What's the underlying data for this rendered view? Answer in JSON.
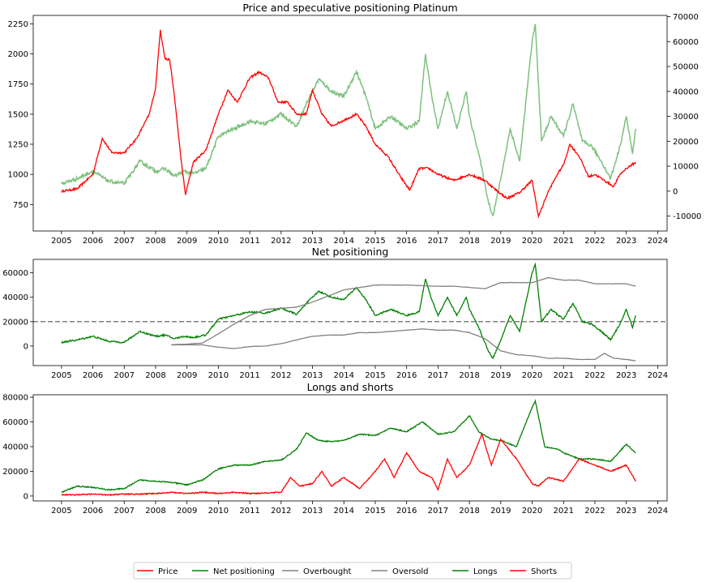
{
  "chart_data": [
    {
      "type": "line",
      "title": "Price and speculative positioning Platinum",
      "xlim": [
        2004.1,
        2024.3
      ],
      "ylim": [
        530,
        2320
      ],
      "y2lim": [
        -16000,
        70500
      ],
      "x_ticks": [
        2005,
        2006,
        2007,
        2008,
        2009,
        2010,
        2011,
        2012,
        2013,
        2014,
        2015,
        2016,
        2017,
        2018,
        2019,
        2020,
        2021,
        2022,
        2023,
        2024
      ],
      "y_ticks": [
        750,
        1000,
        1250,
        1500,
        1750,
        2000,
        2250
      ],
      "y2_ticks": [
        -10000,
        0,
        10000,
        20000,
        30000,
        40000,
        50000,
        60000,
        70000
      ],
      "grid": false,
      "series": [
        {
          "name": "Price",
          "axis": "left",
          "color": "#ff0000",
          "x": [
            2005.0,
            2005.5,
            2006.0,
            2006.3,
            2006.6,
            2007.0,
            2007.4,
            2007.8,
            2008.0,
            2008.15,
            2008.3,
            2008.45,
            2008.6,
            2008.8,
            2008.95,
            2009.2,
            2009.6,
            2010.0,
            2010.3,
            2010.6,
            2011.0,
            2011.3,
            2011.6,
            2011.9,
            2012.2,
            2012.5,
            2012.8,
            2013.0,
            2013.3,
            2013.6,
            2014.0,
            2014.4,
            2014.7,
            2015.0,
            2015.4,
            2015.8,
            2016.1,
            2016.4,
            2016.7,
            2017.0,
            2017.5,
            2018.0,
            2018.5,
            2018.8,
            2019.2,
            2019.6,
            2020.0,
            2020.2,
            2020.5,
            2020.8,
            2021.0,
            2021.2,
            2021.5,
            2021.8,
            2022.0,
            2022.3,
            2022.6,
            2022.8,
            2023.0,
            2023.3
          ],
          "y": [
            860,
            880,
            1000,
            1300,
            1180,
            1180,
            1300,
            1500,
            1720,
            2200,
            1960,
            1950,
            1650,
            1150,
            830,
            1100,
            1200,
            1500,
            1700,
            1600,
            1800,
            1850,
            1800,
            1600,
            1600,
            1500,
            1500,
            1700,
            1500,
            1400,
            1450,
            1500,
            1400,
            1250,
            1150,
            980,
            870,
            1050,
            1050,
            1000,
            950,
            1000,
            950,
            880,
            800,
            850,
            950,
            650,
            850,
            1000,
            1080,
            1250,
            1150,
            980,
            1000,
            950,
            900,
            1000,
            1050,
            1100
          ]
        },
        {
          "name": "Net positioning",
          "axis": "right",
          "color": "#7dc07d",
          "x": [
            2005.0,
            2005.5,
            2006.0,
            2006.5,
            2007.0,
            2007.5,
            2008.0,
            2008.3,
            2008.6,
            2008.9,
            2009.2,
            2009.6,
            2010.0,
            2010.5,
            2011.0,
            2011.5,
            2012.0,
            2012.5,
            2012.8,
            2013.2,
            2013.6,
            2014.0,
            2014.4,
            2014.7,
            2015.0,
            2015.5,
            2016.0,
            2016.4,
            2016.6,
            2016.8,
            2017.0,
            2017.3,
            2017.6,
            2017.9,
            2018.0,
            2018.3,
            2018.6,
            2018.75,
            2019.0,
            2019.3,
            2019.6,
            2020.0,
            2020.1,
            2020.3,
            2020.6,
            2021.0,
            2021.3,
            2021.6,
            2021.9,
            2022.2,
            2022.5,
            2022.8,
            2023.0,
            2023.2,
            2023.3
          ],
          "y": [
            3000,
            5000,
            8000,
            4000,
            3000,
            12000,
            8000,
            9000,
            6000,
            8000,
            7000,
            9000,
            22000,
            25000,
            28000,
            27000,
            31000,
            26000,
            35000,
            45000,
            40000,
            38000,
            48000,
            38000,
            25000,
            30000,
            25000,
            28000,
            55000,
            38000,
            25000,
            40000,
            25000,
            40000,
            30000,
            15000,
            -4000,
            -10000,
            5000,
            25000,
            12000,
            60000,
            67000,
            20000,
            30000,
            22000,
            35000,
            20000,
            18000,
            12000,
            5000,
            18000,
            30000,
            15000,
            25000
          ]
        }
      ]
    },
    {
      "type": "line",
      "title": "Net positioning",
      "xlim": [
        2004.1,
        2024.3
      ],
      "ylim": [
        -16000,
        71000
      ],
      "x_ticks": [
        2005,
        2006,
        2007,
        2008,
        2009,
        2010,
        2011,
        2012,
        2013,
        2014,
        2015,
        2016,
        2017,
        2018,
        2019,
        2020,
        2021,
        2022,
        2023,
        2024
      ],
      "y_ticks": [
        0,
        20000,
        40000,
        60000
      ],
      "grid": false,
      "threshold_line": 20000,
      "series": [
        {
          "name": "Net positioning",
          "color": "#008000",
          "x": [
            2005.0,
            2005.5,
            2006.0,
            2006.5,
            2007.0,
            2007.5,
            2008.0,
            2008.3,
            2008.6,
            2008.9,
            2009.2,
            2009.6,
            2010.0,
            2010.5,
            2011.0,
            2011.5,
            2012.0,
            2012.5,
            2012.8,
            2013.2,
            2013.6,
            2014.0,
            2014.4,
            2014.7,
            2015.0,
            2015.5,
            2016.0,
            2016.4,
            2016.6,
            2016.8,
            2017.0,
            2017.3,
            2017.6,
            2017.9,
            2018.0,
            2018.3,
            2018.6,
            2018.75,
            2019.0,
            2019.3,
            2019.6,
            2020.0,
            2020.1,
            2020.3,
            2020.6,
            2021.0,
            2021.3,
            2021.6,
            2021.9,
            2022.2,
            2022.5,
            2022.8,
            2023.0,
            2023.2,
            2023.3
          ],
          "y": [
            3000,
            5000,
            8000,
            4000,
            3000,
            12000,
            8000,
            9000,
            6000,
            8000,
            7000,
            9000,
            22000,
            25000,
            28000,
            27000,
            31000,
            26000,
            35000,
            45000,
            40000,
            38000,
            48000,
            38000,
            25000,
            30000,
            25000,
            28000,
            55000,
            38000,
            25000,
            40000,
            25000,
            40000,
            30000,
            15000,
            -4000,
            -10000,
            5000,
            25000,
            12000,
            60000,
            67000,
            20000,
            30000,
            22000,
            35000,
            20000,
            18000,
            12000,
            5000,
            18000,
            30000,
            15000,
            25000
          ]
        },
        {
          "name": "Overbought",
          "color": "#808080",
          "x": [
            2008.5,
            2009.0,
            2009.5,
            2010.0,
            2010.5,
            2011.0,
            2011.5,
            2012.0,
            2012.5,
            2013.0,
            2013.5,
            2014.0,
            2014.5,
            2015.0,
            2015.5,
            2016.0,
            2016.5,
            2017.0,
            2017.5,
            2018.0,
            2018.5,
            2019.0,
            2019.5,
            2020.0,
            2020.5,
            2021.0,
            2021.5,
            2022.0,
            2022.5,
            2023.0,
            2023.3
          ],
          "y": [
            1000,
            1500,
            2500,
            10000,
            18000,
            25000,
            30000,
            31000,
            32000,
            36000,
            41000,
            46000,
            48000,
            50000,
            50000,
            50000,
            49500,
            49000,
            49000,
            48000,
            47000,
            52000,
            52000,
            52000,
            56000,
            54000,
            54000,
            51000,
            51000,
            51000,
            49000
          ]
        },
        {
          "name": "Oversold",
          "color": "#808080",
          "x": [
            2008.5,
            2009.0,
            2009.5,
            2010.0,
            2010.5,
            2011.0,
            2011.5,
            2012.0,
            2012.5,
            2013.0,
            2013.5,
            2014.0,
            2014.5,
            2015.0,
            2015.5,
            2016.0,
            2016.5,
            2017.0,
            2017.5,
            2018.0,
            2018.5,
            2019.0,
            2019.5,
            2020.0,
            2020.5,
            2021.0,
            2021.5,
            2022.0,
            2022.3,
            2022.6,
            2023.0,
            2023.3
          ],
          "y": [
            1000,
            1000,
            1000,
            -1000,
            -2000,
            -500,
            0,
            2000,
            5000,
            8000,
            9000,
            9000,
            11000,
            11000,
            12000,
            13000,
            14000,
            13000,
            13000,
            11000,
            6000,
            -4000,
            -7000,
            -8000,
            -10000,
            -10000,
            -11000,
            -11000,
            -6000,
            -10000,
            -11000,
            -12000
          ]
        }
      ]
    },
    {
      "type": "line",
      "title": "Longs and shorts",
      "xlim": [
        2004.1,
        2024.3
      ],
      "ylim": [
        -4000,
        82000
      ],
      "x_ticks": [
        2005,
        2006,
        2007,
        2008,
        2009,
        2010,
        2011,
        2012,
        2013,
        2014,
        2015,
        2016,
        2017,
        2018,
        2019,
        2020,
        2021,
        2022,
        2023,
        2024
      ],
      "y_ticks": [
        0,
        20000,
        40000,
        60000,
        80000
      ],
      "grid": false,
      "series": [
        {
          "name": "Longs",
          "color": "#008000",
          "x": [
            2005.0,
            2005.5,
            2006.0,
            2006.5,
            2007.0,
            2007.5,
            2008.0,
            2008.5,
            2009.0,
            2009.5,
            2010.0,
            2010.5,
            2011.0,
            2011.5,
            2012.0,
            2012.5,
            2012.8,
            2013.2,
            2013.6,
            2014.0,
            2014.5,
            2015.0,
            2015.5,
            2016.0,
            2016.5,
            2017.0,
            2017.5,
            2018.0,
            2018.3,
            2018.7,
            2019.0,
            2019.5,
            2020.0,
            2020.1,
            2020.4,
            2020.8,
            2021.0,
            2021.5,
            2022.0,
            2022.5,
            2023.0,
            2023.3
          ],
          "y": [
            3000,
            8000,
            7000,
            5000,
            6000,
            13000,
            12000,
            11000,
            9000,
            13000,
            22000,
            25000,
            25000,
            28000,
            29000,
            38000,
            51000,
            45000,
            44000,
            45000,
            50000,
            49000,
            55000,
            52000,
            60000,
            50000,
            52000,
            65000,
            52000,
            46000,
            45000,
            40000,
            72000,
            77000,
            40000,
            38000,
            35000,
            30000,
            30000,
            28000,
            42000,
            35000
          ]
        },
        {
          "name": "Shorts",
          "color": "#ff0000",
          "x": [
            2005.0,
            2005.5,
            2006.0,
            2006.5,
            2007.0,
            2007.5,
            2008.0,
            2008.5,
            2009.0,
            2009.5,
            2010.0,
            2010.5,
            2011.0,
            2011.5,
            2012.0,
            2012.3,
            2012.6,
            2013.0,
            2013.3,
            2013.6,
            2014.0,
            2014.5,
            2015.0,
            2015.3,
            2015.6,
            2016.0,
            2016.4,
            2016.8,
            2017.0,
            2017.3,
            2017.6,
            2018.0,
            2018.4,
            2018.7,
            2019.0,
            2019.5,
            2020.0,
            2020.2,
            2020.5,
            2021.0,
            2021.5,
            2022.0,
            2022.5,
            2023.0,
            2023.3
          ],
          "y": [
            1000,
            1000,
            1500,
            1000,
            1500,
            1500,
            2000,
            3000,
            2000,
            3000,
            2000,
            3000,
            2000,
            2500,
            3000,
            15000,
            8000,
            10000,
            20000,
            8000,
            15000,
            6000,
            20000,
            30000,
            15000,
            35000,
            20000,
            15000,
            5000,
            30000,
            15000,
            25000,
            50000,
            25000,
            46000,
            30000,
            10000,
            8000,
            15000,
            12000,
            30000,
            25000,
            20000,
            25000,
            12000
          ]
        }
      ]
    }
  ],
  "legend": {
    "placement": "bottom-center",
    "entries": [
      {
        "label": "Price",
        "color": "#ff0000"
      },
      {
        "label": "Net positioning",
        "color": "#008000"
      },
      {
        "label": "Overbought",
        "color": "#808080"
      },
      {
        "label": "Oversold",
        "color": "#808080"
      },
      {
        "label": "Longs",
        "color": "#008000"
      },
      {
        "label": "Shorts",
        "color": "#ff0000"
      }
    ]
  }
}
